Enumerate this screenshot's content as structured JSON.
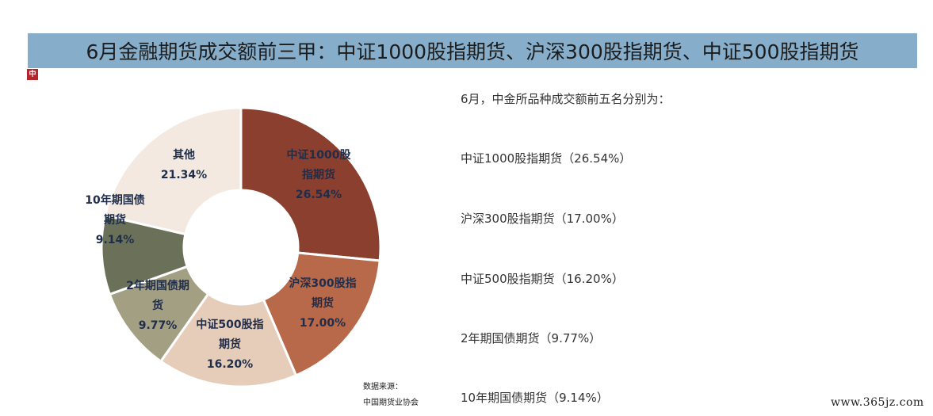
{
  "title": "6月金融期货成交额前三甲：中证1000股指期货、沪深300股指期货、中证500股指期货",
  "logo_text": "中",
  "intro": "6月，中金所品种成交额前五名分别为：",
  "ranking": [
    "中证1000股指期货（26.54%）",
    "沪深300股指期货（17.00%）",
    "中证500股指期货（16.20%）",
    "2年期国债期货（9.77%）",
    "10年期国债期货（9.14%）"
  ],
  "source": {
    "label": "数据来源：",
    "value": "中国期货业协会"
  },
  "watermark": "www.365jz.com",
  "chart_data": {
    "type": "pie",
    "donut": true,
    "slices": [
      {
        "name": "中证1000股指期货",
        "value": 26.54,
        "label_lines": [
          "中证1000股",
          "指期货",
          "26.54%"
        ],
        "color": "#8b3f2e"
      },
      {
        "name": "沪深300股指期货",
        "value": 17.0,
        "label_lines": [
          "沪深300股指",
          "期货",
          "17.00%"
        ],
        "color": "#b8694a"
      },
      {
        "name": "中证500股指期货",
        "value": 16.2,
        "label_lines": [
          "中证500股指",
          "期货",
          "16.20%"
        ],
        "color": "#e5cdb9"
      },
      {
        "name": "2年期国债期货",
        "value": 9.77,
        "label_lines": [
          "2年期国债期",
          "货",
          "9.77%"
        ],
        "color": "#a29f83"
      },
      {
        "name": "10年期国债期货",
        "value": 9.14,
        "label_lines": [
          "10年期国债",
          "期货",
          "9.14%"
        ],
        "color": "#6a7158"
      },
      {
        "name": "其他",
        "value": 21.34,
        "label_lines": [
          "其他",
          "21.34%"
        ],
        "color": "#f3e9e0"
      }
    ]
  }
}
